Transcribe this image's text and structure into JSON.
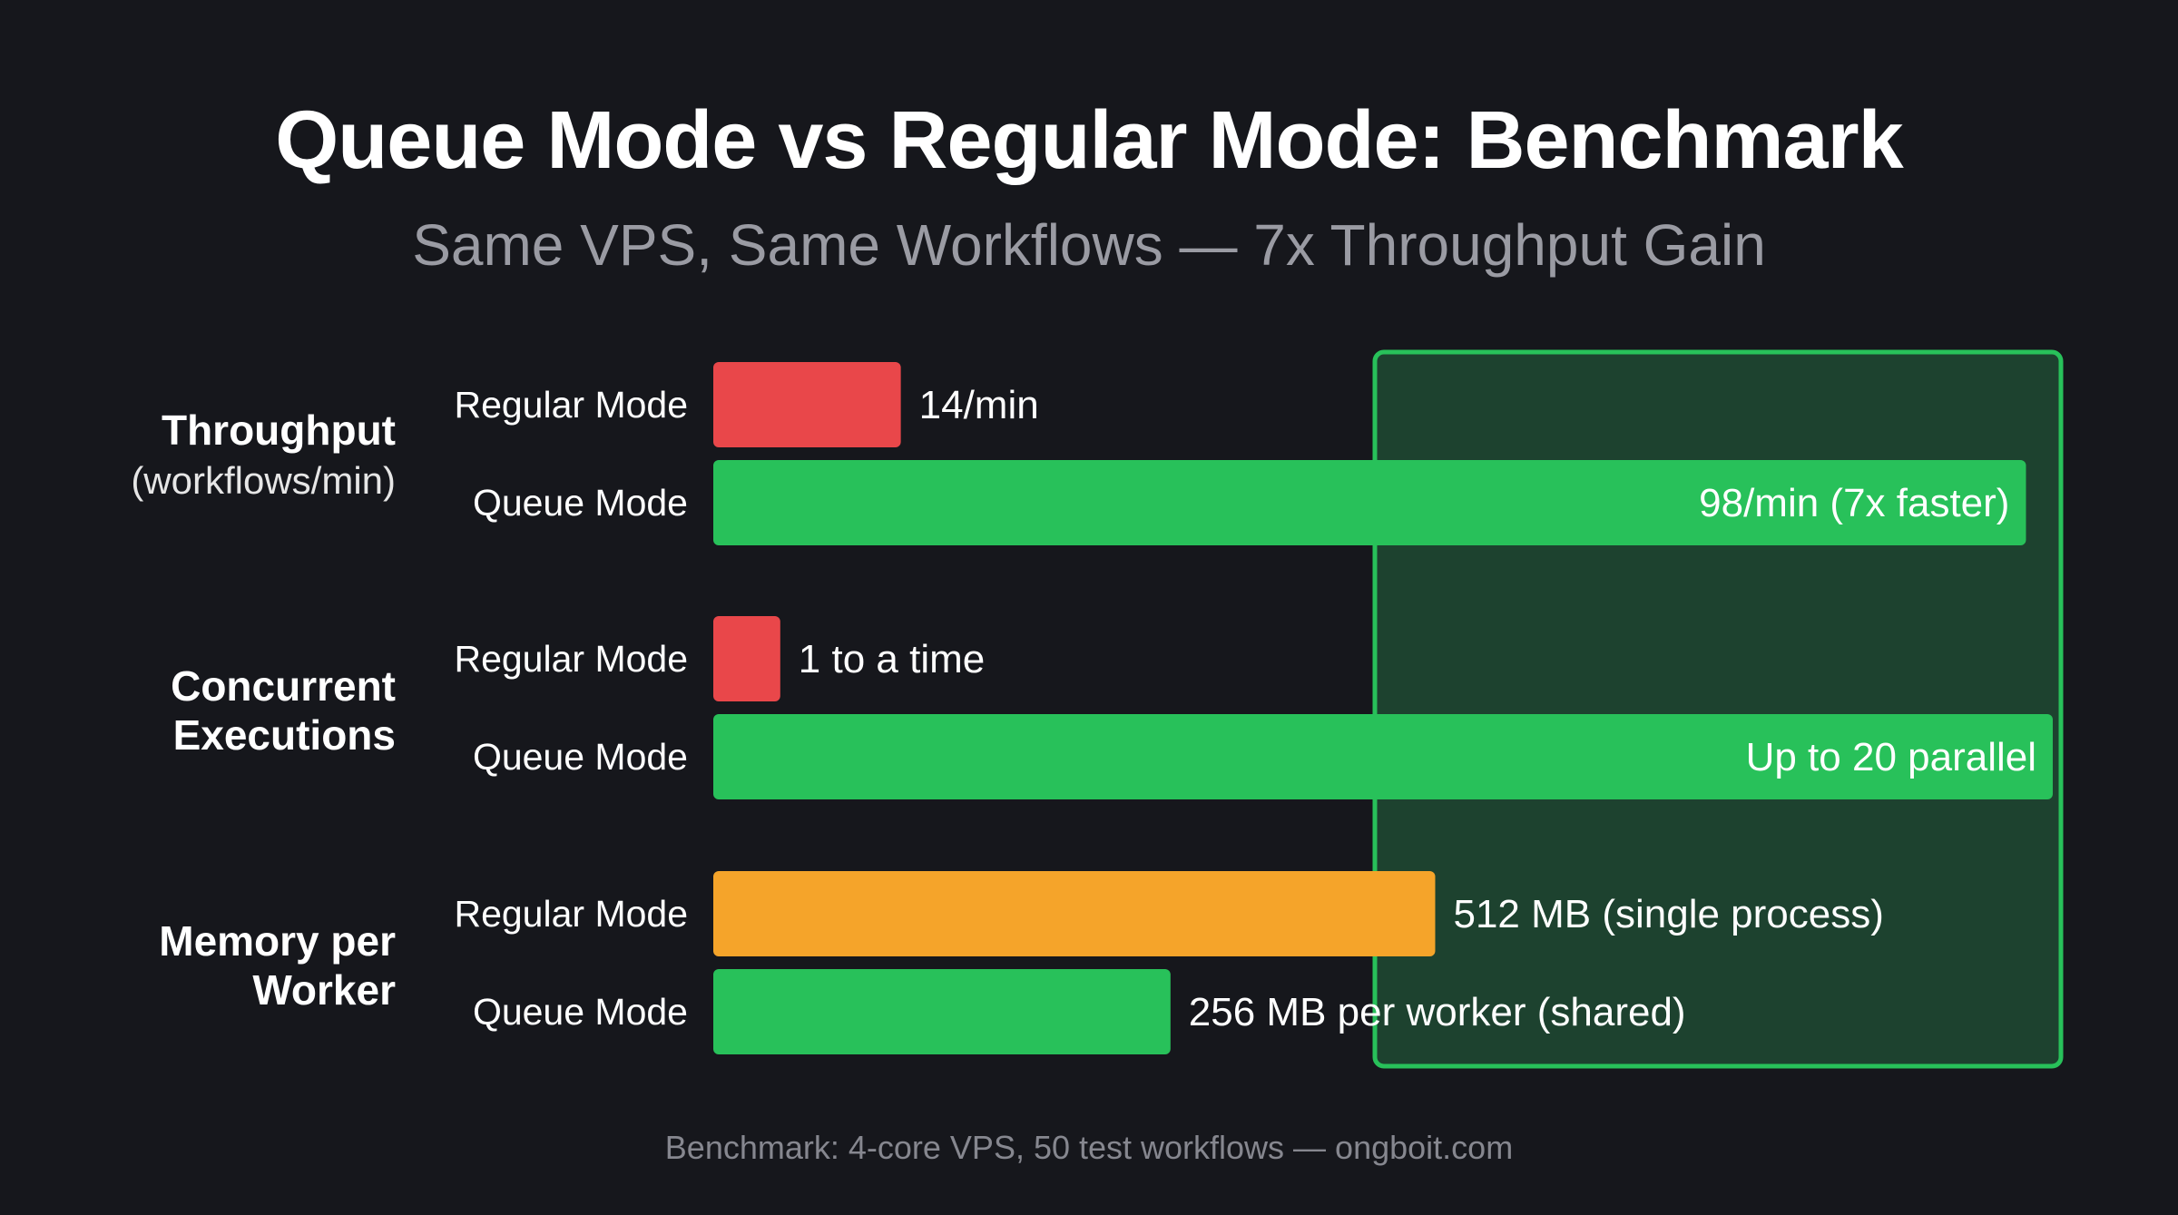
{
  "chart_data": {
    "type": "bar",
    "orientation": "horizontal",
    "title": "Queue Mode vs Regular Mode: Benchmark",
    "subtitle": "Same VPS, Same Workflows — 7x Throughput Gain",
    "footer": "Benchmark: 4-core VPS, 50 test workflows — ongboit.com",
    "legend": "none",
    "grid": false,
    "highlight": "right-side green panel",
    "colors": {
      "background": "#16171c",
      "regular_throughput": "#e9474a",
      "regular_concurrent": "#e9474a",
      "regular_memory": "#f5a42a",
      "queue": "#28c15a",
      "highlight_fill": "#1f4a33",
      "highlight_border": "#28c15a"
    },
    "groups": [
      {
        "label": "Throughput",
        "sublabel": "(workflows/min)",
        "bars": [
          {
            "series": "Regular Mode",
            "value": 14,
            "max": 100,
            "value_label": "14/min",
            "label_inside": false,
            "color_key": "regular_throughput"
          },
          {
            "series": "Queue Mode",
            "value": 98,
            "max": 100,
            "value_label": "98/min (7x faster)",
            "label_inside": true,
            "color_key": "queue"
          }
        ]
      },
      {
        "label": "Concurrent",
        "label_line2": "Executions",
        "sublabel": "",
        "bars": [
          {
            "series": "Regular Mode",
            "value": 1,
            "max": 20,
            "value_label": "1 to a time",
            "label_inside": false,
            "color_key": "regular_concurrent"
          },
          {
            "series": "Queue Mode",
            "value": 20,
            "max": 20,
            "value_label": "Up to 20 parallel",
            "label_inside": true,
            "color_key": "queue"
          }
        ]
      },
      {
        "label": "Memory per",
        "label_line2": "Worker",
        "sublabel": "",
        "bars": [
          {
            "series": "Regular Mode",
            "value": 512,
            "max": 950,
            "value_label": "512 MB (single process)",
            "label_inside": false,
            "color_key": "regular_memory"
          },
          {
            "series": "Queue Mode",
            "value": 256,
            "max": 750,
            "value_label": "256 MB per worker (shared)",
            "label_inside": false,
            "color_key": "queue"
          }
        ]
      }
    ]
  }
}
